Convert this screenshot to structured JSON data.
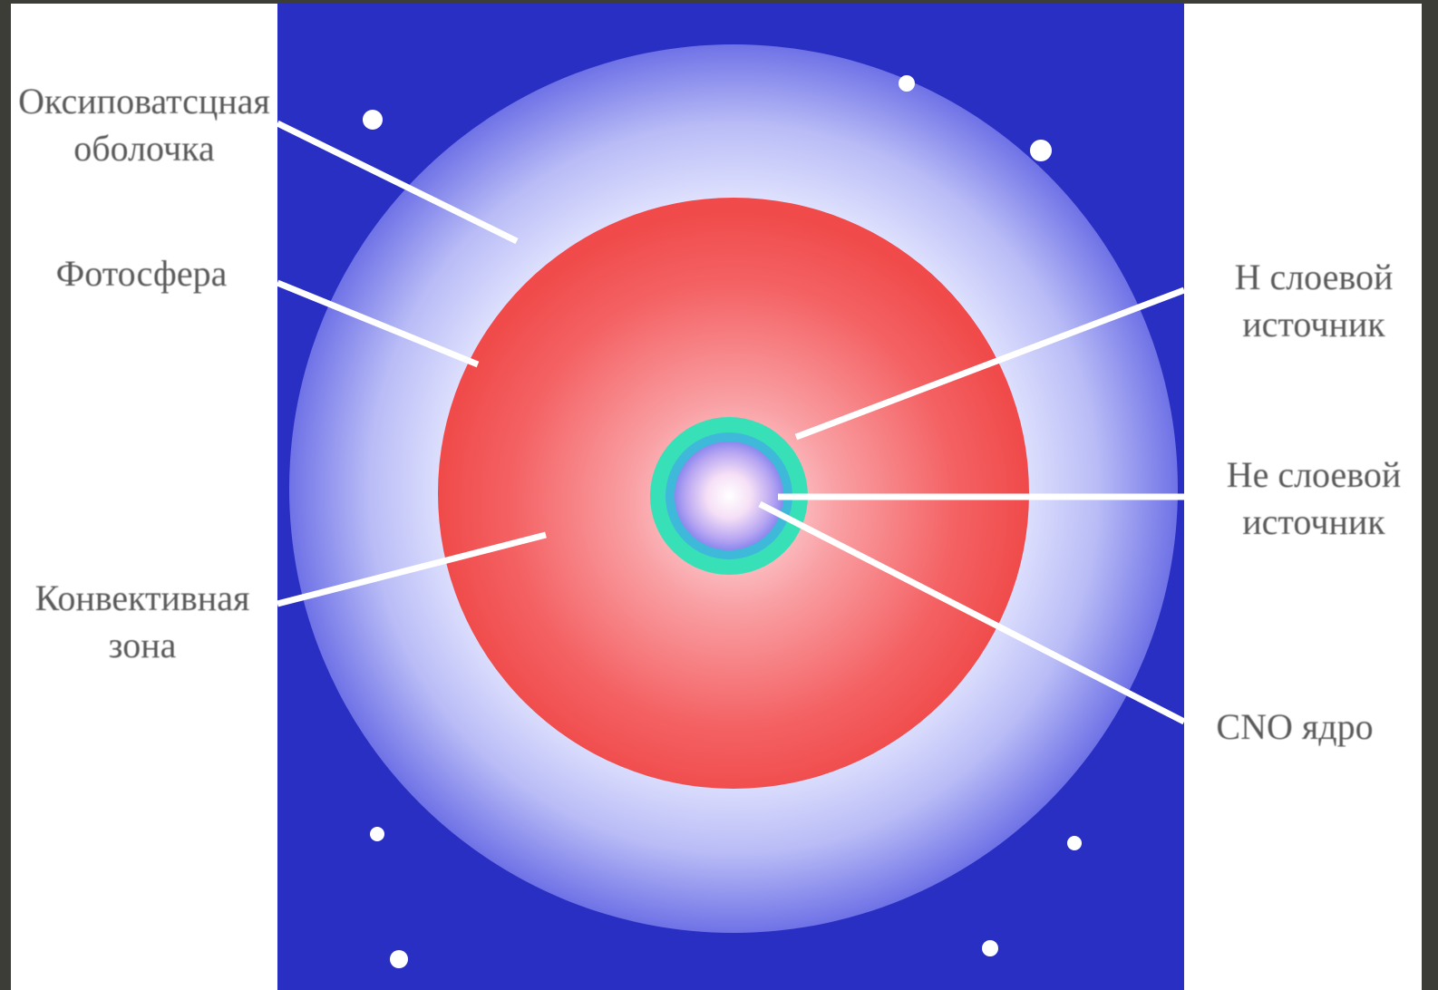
{
  "diagram": {
    "colors": {
      "background_panel": "#2a2fc4",
      "envelope_edge": "#6f72e6",
      "envelope_inner": "#eef0ff",
      "convective_zone": "#f35050",
      "convective_center": "#fbe0e6",
      "shell_teal": "#38e0b8",
      "core_center": "#ffffff",
      "leader_lines": "#ffffff",
      "label_text": "#5a5a5a"
    },
    "labels": {
      "envelope": {
        "line1": "Оксиповатсцная",
        "line2": "оболочка"
      },
      "photosphere": {
        "line1": "Фотосфера"
      },
      "convective": {
        "line1": "Конвективная",
        "line2": "зона"
      },
      "h_shell": {
        "line1": "Н слоевой",
        "line2": "источник"
      },
      "he_shell": {
        "line1": "Не слоевой",
        "line2": "источник"
      },
      "cno_core": {
        "line1": "CNO ядро"
      }
    },
    "icons": {
      "stars": "star-dot-icon"
    }
  }
}
